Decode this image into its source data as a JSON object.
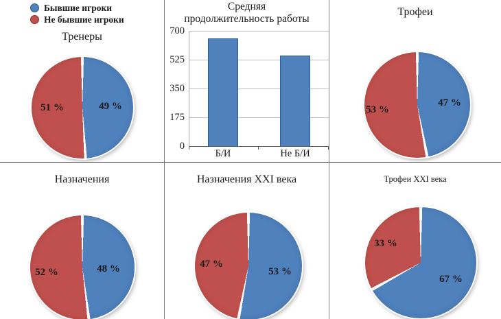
{
  "colors": {
    "series_blue": "#4F81BD",
    "series_red": "#C0504D",
    "blue_border": "#2E5A8F",
    "red_border": "#8E3634",
    "gridline": "#BFBFBF",
    "axis": "#595959",
    "text": "#1A1A1A"
  },
  "legend": {
    "items": [
      {
        "label": "Бывшие игроки",
        "color": "#4F81BD"
      },
      {
        "label": "Не бывшие игроки",
        "color": "#C0504D"
      }
    ]
  },
  "chart_data": [
    {
      "type": "pie",
      "title": "Тренеры",
      "series_labels": [
        "Бывшие игроки",
        "Не бывшие игроки"
      ],
      "values": [
        49,
        51
      ],
      "value_labels": [
        "49 %",
        "51 %"
      ]
    },
    {
      "type": "bar",
      "title": "Средняя продолжительность работы",
      "title_lines": [
        "Средняя",
        "продолжительность работы"
      ],
      "categories": [
        "Б/И",
        "Не Б/И"
      ],
      "values": [
        655,
        550
      ],
      "ylim": [
        0,
        700
      ],
      "yticks": [
        700,
        525,
        350,
        175,
        0
      ],
      "bar_color": "#4F81BD",
      "grid": true,
      "legend_position": "none"
    },
    {
      "type": "pie",
      "title": "Трофеи",
      "series_labels": [
        "Бывшие игроки",
        "Не бывшие игроки"
      ],
      "values": [
        47,
        53
      ],
      "value_labels": [
        "47 %",
        "53 %"
      ]
    },
    {
      "type": "pie",
      "title": "Назначения",
      "series_labels": [
        "Бывшие игроки",
        "Не бывшие игроки"
      ],
      "values": [
        48,
        52
      ],
      "value_labels": [
        "48 %",
        "52 %"
      ]
    },
    {
      "type": "pie",
      "title": "Назначения XXI века",
      "series_labels": [
        "Бывшие игроки",
        "Не бывшие игроки"
      ],
      "values": [
        53,
        47
      ],
      "value_labels": [
        "53 %",
        "47 %"
      ]
    },
    {
      "type": "pie",
      "title": "Трофеи XXI века",
      "series_labels": [
        "Бывшие игроки",
        "Не бывшие игроки"
      ],
      "values": [
        67,
        33
      ],
      "value_labels": [
        "67 %",
        "33 %"
      ]
    }
  ]
}
